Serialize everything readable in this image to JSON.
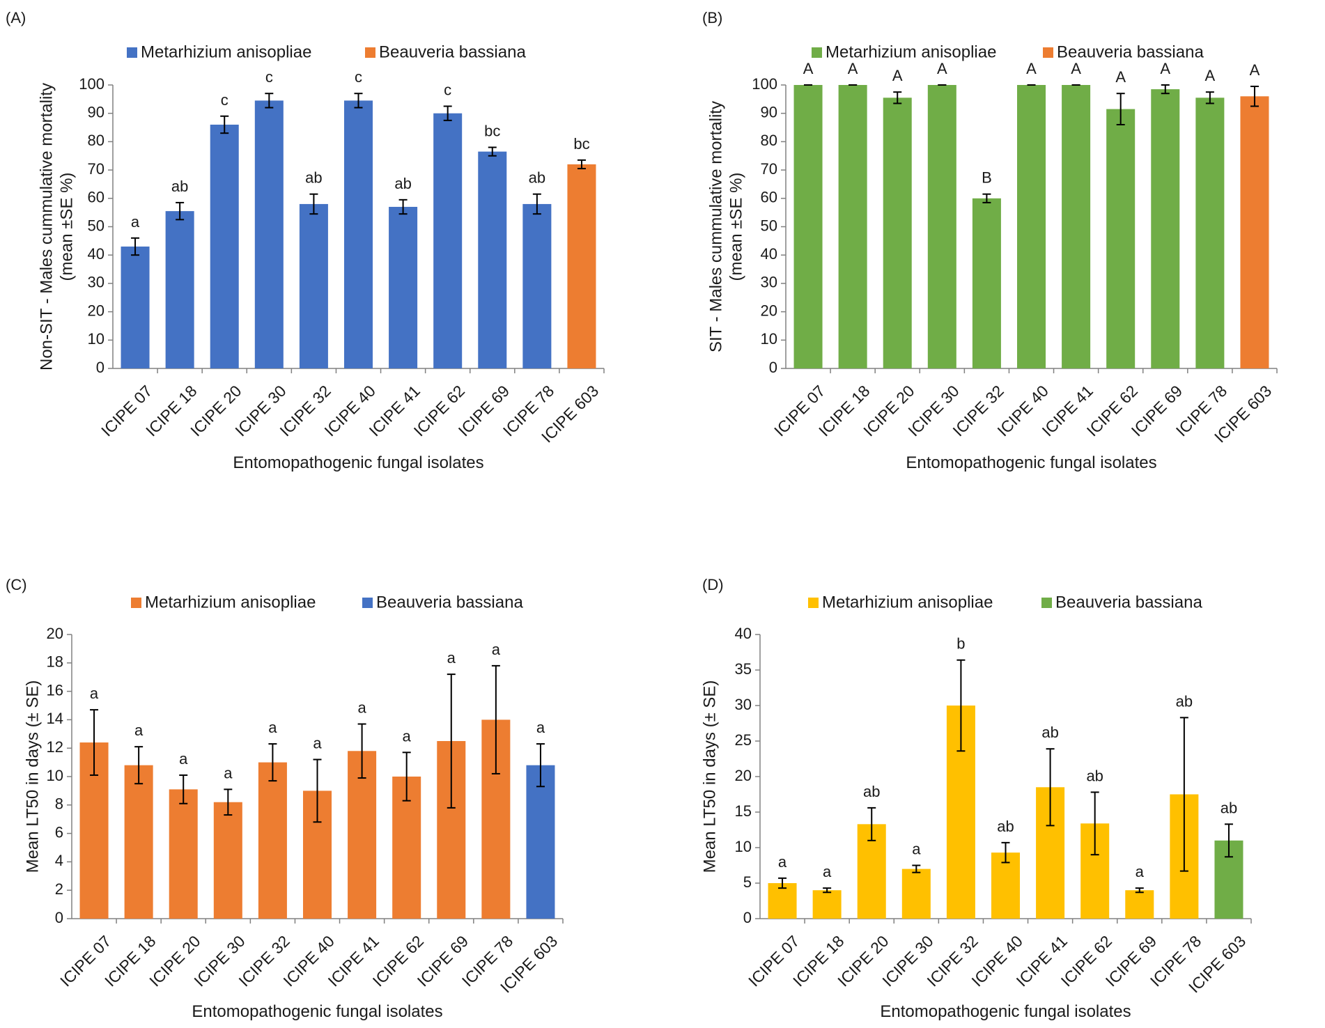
{
  "figure": {
    "panel_labels": [
      "(A)",
      "(B)",
      "(C)",
      "(D)"
    ]
  },
  "chart_data": [
    {
      "panel": "(A)",
      "type": "bar",
      "title": "",
      "xlabel": "Entomopathogenic fungal isolates",
      "ylabel_line1": "Non-SIT - Males cummulative mortality",
      "ylabel_line2": "(mean  ±SE %)",
      "ylim": [
        0,
        100
      ],
      "ytick_step": 10,
      "ytick_labels": [
        "0",
        "10",
        "20",
        "30",
        "40",
        "50",
        "60",
        "70",
        "80",
        "90",
        "100"
      ],
      "categories": [
        "ICIPE 07",
        "ICIPE 18",
        "ICIPE 20",
        "ICIPE 30",
        "ICIPE 32",
        "ICIPE 40",
        "ICIPE 41",
        "ICIPE 62",
        "ICIPE 69",
        "ICIPE 78",
        "ICIPE 603"
      ],
      "values": [
        43,
        55.5,
        86,
        94.5,
        58,
        94.5,
        57,
        90,
        76.5,
        58,
        72
      ],
      "errors": [
        3,
        3,
        3,
        2.5,
        3.5,
        2.5,
        2.5,
        2.5,
        1.5,
        3.5,
        1.5
      ],
      "labels": [
        "a",
        "ab",
        "c",
        "c",
        "ab",
        "c",
        "ab",
        "c",
        "bc",
        "ab",
        "bc"
      ],
      "series_of_bar": [
        0,
        0,
        0,
        0,
        0,
        0,
        0,
        0,
        0,
        0,
        1
      ],
      "series": [
        {
          "name": "Metarhizium anisopliae",
          "color": "#4472c4"
        },
        {
          "name": "Beauveria bassiana",
          "color": "#ed7d31"
        }
      ],
      "legend_position": "top-center"
    },
    {
      "panel": "(B)",
      "type": "bar",
      "title": "",
      "xlabel": "Entomopathogenic fungal isolates",
      "ylabel_line1": "SIT - Males cummulative mortality",
      "ylabel_line2": "(mean  ±SE %)",
      "ylim": [
        0,
        100
      ],
      "ytick_step": 10,
      "ytick_labels": [
        "0",
        "10",
        "20",
        "30",
        "40",
        "50",
        "60",
        "70",
        "80",
        "90",
        "100"
      ],
      "categories": [
        "ICIPE 07",
        "ICIPE 18",
        "ICIPE 20",
        "ICIPE 30",
        "ICIPE 32",
        "ICIPE 40",
        "ICIPE 41",
        "ICIPE 62",
        "ICIPE 69",
        "ICIPE 78",
        "ICIPE 603"
      ],
      "values": [
        100,
        100,
        95.5,
        100,
        60,
        100,
        100,
        91.5,
        98.5,
        95.5,
        96
      ],
      "errors": [
        0,
        0,
        2,
        0,
        1.5,
        0,
        0,
        5.5,
        1.5,
        2,
        3.5
      ],
      "labels": [
        "A",
        "A",
        "A",
        "A",
        "B",
        "A",
        "A",
        "A",
        "A",
        "A",
        "A"
      ],
      "series_of_bar": [
        0,
        0,
        0,
        0,
        0,
        0,
        0,
        0,
        0,
        0,
        1
      ],
      "series": [
        {
          "name": "Metarhizium anisopliae",
          "color": "#70ad47"
        },
        {
          "name": "Beauveria bassiana",
          "color": "#ed7d31"
        }
      ],
      "legend_position": "top-center"
    },
    {
      "panel": "(C)",
      "type": "bar",
      "title": "",
      "xlabel": "Entomopathogenic fungal isolates",
      "ylabel_line1": "Mean LT50 in days (± SE)",
      "ylabel_line2": "",
      "ylim": [
        0,
        20
      ],
      "ytick_step": 2,
      "ytick_labels": [
        "0",
        "2",
        "4",
        "6",
        "8",
        "10",
        "12",
        "14",
        "16",
        "18",
        "20"
      ],
      "categories": [
        "ICIPE 07",
        "ICIPE 18",
        "ICIPE 20",
        "ICIPE 30",
        "ICIPE 32",
        "ICIPE 40",
        "ICIPE 41",
        "ICIPE 62",
        "ICIPE 69",
        "ICIPE 78",
        "ICIPE 603"
      ],
      "values": [
        12.4,
        10.8,
        9.1,
        8.2,
        11.0,
        9.0,
        11.8,
        10.0,
        12.5,
        14.0,
        10.8
      ],
      "errors": [
        2.3,
        1.3,
        1.0,
        0.9,
        1.3,
        2.2,
        1.9,
        1.7,
        4.7,
        3.8,
        1.5
      ],
      "labels": [
        "a",
        "a",
        "a",
        "a",
        "a",
        "a",
        "a",
        "a",
        "a",
        "a",
        "a"
      ],
      "series_of_bar": [
        0,
        0,
        0,
        0,
        0,
        0,
        0,
        0,
        0,
        0,
        1
      ],
      "series": [
        {
          "name": "Metarhizium anisopliae",
          "color": "#ed7d31"
        },
        {
          "name": "Beauveria bassiana",
          "color": "#4472c4"
        }
      ],
      "legend_position": "top-center"
    },
    {
      "panel": "(D)",
      "type": "bar",
      "title": "",
      "xlabel": "Entomopathogenic fungal isolates",
      "ylabel_line1": "Mean LT50 in days (± SE)",
      "ylabel_line2": "",
      "ylim": [
        0,
        40
      ],
      "ytick_step": 5,
      "ytick_labels": [
        "0",
        "5",
        "10",
        "15",
        "20",
        "25",
        "30",
        "35",
        "40"
      ],
      "categories": [
        "ICIPE 07",
        "ICIPE 18",
        "ICIPE 20",
        "ICIPE 30",
        "ICIPE 32",
        "ICIPE 40",
        "ICIPE 41",
        "ICIPE 62",
        "ICIPE 69",
        "ICIPE 78",
        "ICIPE 603"
      ],
      "values": [
        5.0,
        4.0,
        13.3,
        7.0,
        30.0,
        9.3,
        18.5,
        13.4,
        4.0,
        17.5,
        11.0
      ],
      "errors": [
        0.7,
        0.3,
        2.3,
        0.5,
        6.4,
        1.4,
        5.4,
        4.4,
        0.3,
        10.8,
        2.3
      ],
      "labels": [
        "a",
        "a",
        "ab",
        "a",
        "b",
        "ab",
        "ab",
        "ab",
        "a",
        "ab",
        "ab"
      ],
      "series_of_bar": [
        0,
        0,
        0,
        0,
        0,
        0,
        0,
        0,
        0,
        0,
        1
      ],
      "series": [
        {
          "name": "Metarhizium anisopliae",
          "color": "#ffc000"
        },
        {
          "name": "Beauveria bassiana",
          "color": "#70ad47"
        }
      ],
      "legend_position": "top-center"
    }
  ]
}
